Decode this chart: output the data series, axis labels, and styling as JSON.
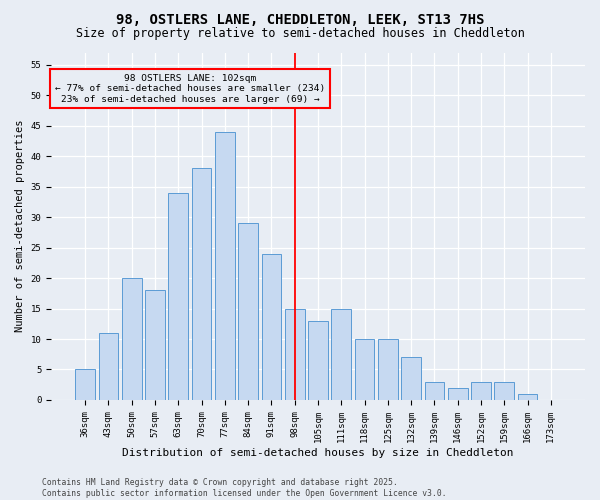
{
  "title": "98, OSTLERS LANE, CHEDDLETON, LEEK, ST13 7HS",
  "subtitle": "Size of property relative to semi-detached houses in Cheddleton",
  "xlabel": "Distribution of semi-detached houses by size in Cheddleton",
  "ylabel": "Number of semi-detached properties",
  "bar_labels": [
    "36sqm",
    "43sqm",
    "50sqm",
    "57sqm",
    "63sqm",
    "70sqm",
    "77sqm",
    "84sqm",
    "91sqm",
    "98sqm",
    "105sqm",
    "111sqm",
    "118sqm",
    "125sqm",
    "132sqm",
    "139sqm",
    "146sqm",
    "152sqm",
    "159sqm",
    "166sqm",
    "173sqm"
  ],
  "bar_values": [
    5,
    11,
    20,
    18,
    34,
    38,
    44,
    29,
    24,
    15,
    13,
    15,
    10,
    10,
    7,
    3,
    2,
    3,
    3,
    1,
    0
  ],
  "bar_color": "#c6d9f1",
  "bar_edge_color": "#5b9bd5",
  "background_color": "#e8edf4",
  "grid_color": "#ffffff",
  "vline_x_idx": 9,
  "vline_color": "red",
  "annotation_line1": "98 OSTLERS LANE: 102sqm",
  "annotation_line2": "← 77% of semi-detached houses are smaller (234)",
  "annotation_line3": "23% of semi-detached houses are larger (69) →",
  "annotation_box_color": "red",
  "ylim": [
    0,
    57
  ],
  "yticks": [
    0,
    5,
    10,
    15,
    20,
    25,
    30,
    35,
    40,
    45,
    50,
    55
  ],
  "footer": "Contains HM Land Registry data © Crown copyright and database right 2025.\nContains public sector information licensed under the Open Government Licence v3.0.",
  "title_fontsize": 10,
  "subtitle_fontsize": 8.5,
  "xlabel_fontsize": 8,
  "ylabel_fontsize": 7.5,
  "tick_fontsize": 6.5,
  "annot_fontsize": 6.8,
  "footer_fontsize": 5.8
}
